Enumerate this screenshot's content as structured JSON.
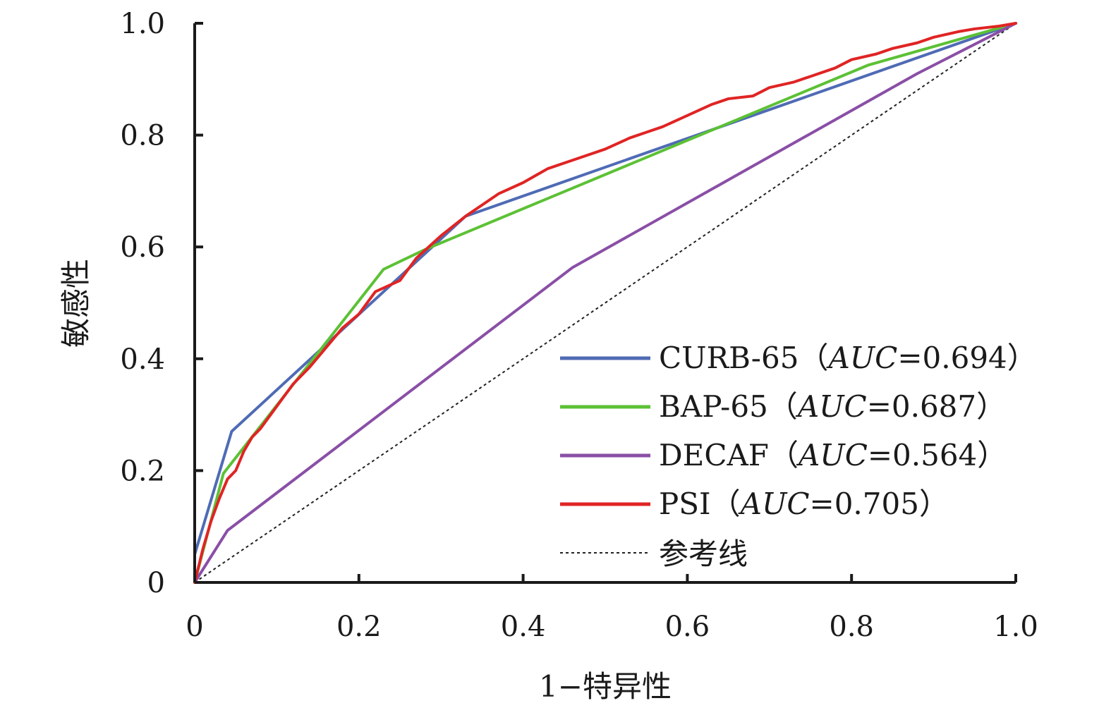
{
  "chart_data": {
    "type": "line",
    "title": "",
    "xlabel": "1−特异性",
    "ylabel": "敏感性",
    "xlim": [
      0,
      1.0
    ],
    "ylim": [
      0,
      1.0
    ],
    "xticks": [
      "0",
      "0.2",
      "0.4",
      "0.6",
      "0.8",
      "1.0"
    ],
    "yticks": [
      "0",
      "0.2",
      "0.4",
      "0.6",
      "0.8",
      "1.0"
    ],
    "grid": false,
    "legend_position": "bottom-right",
    "series": [
      {
        "name": "CURB-65",
        "auc_label": "AUC",
        "auc_value": "=0.694",
        "open_paren": "（",
        "close_paren": "）",
        "color": "#4f6bb5",
        "style": "solid",
        "x": [
          0,
          0.045,
          0.33,
          1.0
        ],
        "y": [
          0.05,
          0.27,
          0.655,
          1.0
        ]
      },
      {
        "name": "BAP-65",
        "auc_label": "AUC",
        "auc_value": "=0.687",
        "open_paren": "（",
        "close_paren": "）",
        "color": "#5cc135",
        "style": "solid",
        "x": [
          0,
          0.035,
          0.23,
          0.28,
          0.82,
          1.0
        ],
        "y": [
          0,
          0.195,
          0.56,
          0.595,
          0.925,
          1.0
        ]
      },
      {
        "name": "DECAF",
        "auc_label": "AUC",
        "auc_value": "=0.564",
        "open_paren": "（",
        "close_paren": "）",
        "color": "#8a4fa6",
        "style": "solid",
        "x": [
          0,
          0.04,
          0.46,
          0.88,
          1.0
        ],
        "y": [
          0,
          0.093,
          0.563,
          0.91,
          1.0
        ]
      },
      {
        "name": "PSI",
        "auc_label": "AUC",
        "auc_value": "=0.705",
        "open_paren": "（",
        "close_paren": "）",
        "color": "#e02424",
        "style": "solid",
        "x": [
          0,
          0.01,
          0.02,
          0.03,
          0.04,
          0.05,
          0.06,
          0.07,
          0.08,
          0.1,
          0.12,
          0.14,
          0.16,
          0.18,
          0.2,
          0.22,
          0.25,
          0.27,
          0.3,
          0.33,
          0.35,
          0.37,
          0.4,
          0.43,
          0.45,
          0.48,
          0.5,
          0.53,
          0.55,
          0.57,
          0.6,
          0.63,
          0.65,
          0.68,
          0.7,
          0.73,
          0.75,
          0.78,
          0.8,
          0.83,
          0.85,
          0.88,
          0.9,
          0.93,
          0.95,
          0.98,
          1.0
        ],
        "y": [
          0,
          0.06,
          0.11,
          0.15,
          0.185,
          0.2,
          0.235,
          0.26,
          0.275,
          0.315,
          0.355,
          0.385,
          0.42,
          0.455,
          0.48,
          0.52,
          0.54,
          0.58,
          0.62,
          0.655,
          0.675,
          0.695,
          0.715,
          0.74,
          0.75,
          0.765,
          0.775,
          0.795,
          0.805,
          0.815,
          0.835,
          0.855,
          0.865,
          0.87,
          0.885,
          0.895,
          0.905,
          0.92,
          0.935,
          0.945,
          0.955,
          0.965,
          0.975,
          0.985,
          0.99,
          0.995,
          1.0
        ]
      }
    ],
    "reference": {
      "name": "参考线",
      "color": "#222222",
      "style": "dashed",
      "x": [
        0,
        1.0
      ],
      "y": [
        0,
        1.0
      ]
    }
  }
}
